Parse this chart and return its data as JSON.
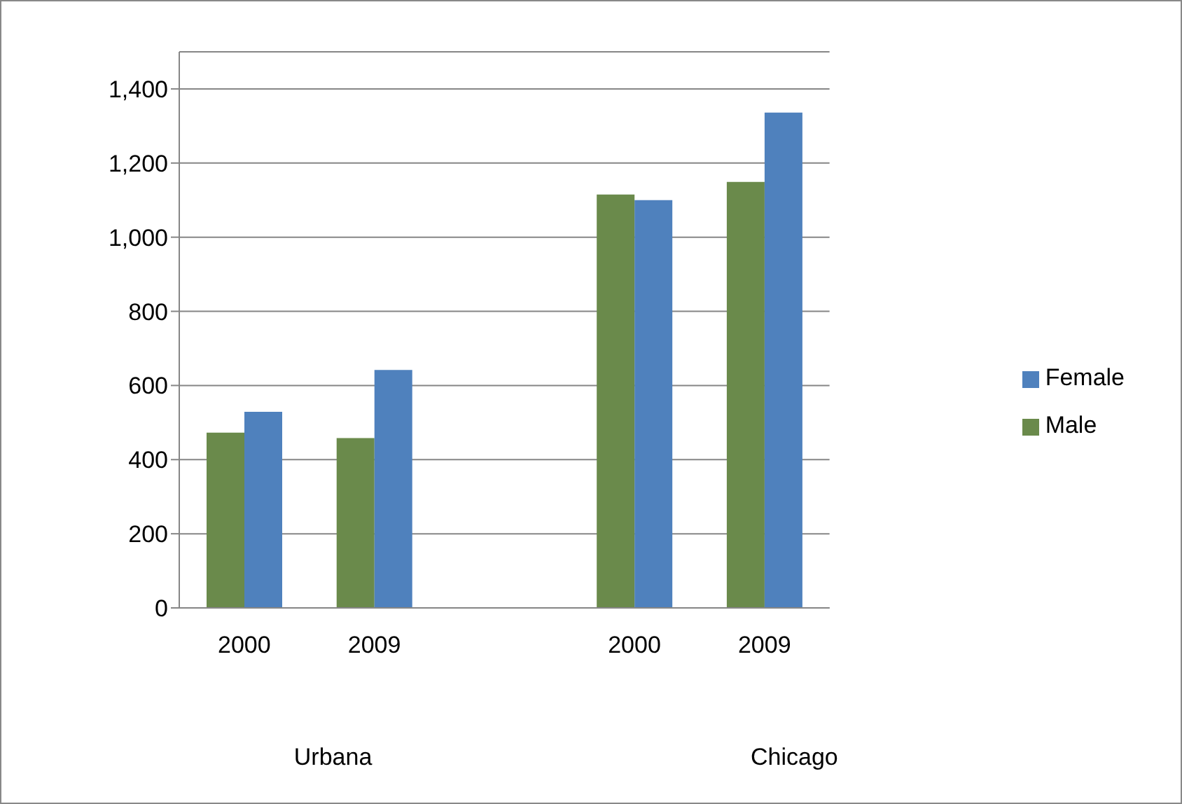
{
  "chart_data": {
    "type": "bar",
    "categories": [
      "2000",
      "2009",
      null,
      "2000",
      "2009"
    ],
    "series": [
      {
        "name": "Male",
        "color": "#6a8a4b",
        "values": [
          473,
          458,
          null,
          1115,
          1149
        ]
      },
      {
        "name": "Female",
        "color": "#4f81bd",
        "values": [
          529,
          642,
          null,
          1100,
          1336
        ]
      }
    ],
    "ylim": [
      0,
      1500
    ],
    "yticks": [
      0,
      {
        "value": 200,
        "label": "200"
      },
      {
        "value": 400,
        "label": "400"
      },
      {
        "value": 600,
        "label": "600"
      },
      {
        "value": 800,
        "label": "800"
      },
      {
        "value": 1000,
        "label": "1,000"
      },
      {
        "value": 1200,
        "label": "1,200"
      },
      {
        "value": 1400,
        "label": "1,400"
      }
    ],
    "grid": "y",
    "legend": "right",
    "annotations": [
      "Urbana",
      "Chicago"
    ]
  }
}
